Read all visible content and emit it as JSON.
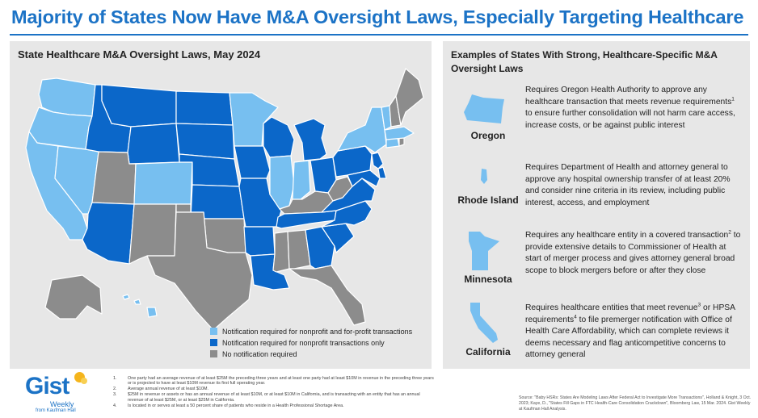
{
  "title": "Majority of States Now Have M&A Oversight Laws, Especially Targeting Healthcare",
  "colors": {
    "accent": "#1c73c6",
    "notify_all": "#77bff0",
    "notify_nonprofit": "#0b67c9",
    "no_notification": "#8c8c8c",
    "panel": "#e7e7e7"
  },
  "map": {
    "title": "State Healthcare M&A Oversight Laws, May 2024",
    "legend": [
      {
        "label": "Notification required for nonprofit and for-profit transactions",
        "color": "#77bff0"
      },
      {
        "label": "Notification required for nonprofit transactions only",
        "color": "#0b67c9"
      },
      {
        "label": "No notification required",
        "color": "#8c8c8c"
      }
    ],
    "states": {
      "notify_all": [
        "WA",
        "OR",
        "CA",
        "NV",
        "CO",
        "MN",
        "IL",
        "IN",
        "NY",
        "VT",
        "MA",
        "CT",
        "HI"
      ],
      "notify_nonprofit": [
        "MT",
        "ID",
        "WY",
        "ND",
        "SD",
        "NE",
        "KS",
        "IA",
        "MO",
        "WI",
        "MI",
        "OH",
        "PA",
        "VA",
        "NC",
        "SC",
        "GA",
        "TN",
        "AR",
        "LA",
        "AZ",
        "MD",
        "DE",
        "NJ"
      ],
      "no_notification": [
        "UT",
        "NM",
        "OK",
        "TX",
        "KY",
        "WV",
        "MS",
        "AL",
        "FL",
        "ME",
        "NH",
        "AK"
      ]
    }
  },
  "examples": {
    "title": "Examples of States With Strong, Healthcare-Specific M&A Oversight Laws",
    "items": [
      {
        "state": "Oregon",
        "icon": "oregon-state-icon",
        "desc": "Requires Oregon Health Authority to approve any healthcare transaction that meets revenue requirements",
        "sup": "1",
        "desc2": " to ensure further consolidation will not harm care access, increase costs, or be against public interest"
      },
      {
        "state": "Rhode Island",
        "icon": "rhode-island-state-icon",
        "desc": "Requires Department of Health and attorney general to approve any hospital ownership transfer of at least 20% and consider nine criteria in its review, including public interest, access, and employment",
        "sup": "",
        "desc2": ""
      },
      {
        "state": "Minnesota",
        "icon": "minnesota-state-icon",
        "desc": "Requires any healthcare entity in a covered transaction",
        "sup": "2",
        "desc2": " to provide extensive details to Commissioner of Health at start of merger process and gives attorney general broad scope to block mergers before or after they close"
      },
      {
        "state": "California",
        "icon": "california-state-icon",
        "desc": "Requires healthcare entities that meet revenue",
        "sup": "3",
        "desc2": " or HPSA requirements",
        "sup2": "4",
        "desc3": " to file premerger notification with Office of Health Care Affordability, which can complete reviews it deems necessary and flag anticompetitive concerns to attorney general"
      }
    ]
  },
  "logo": {
    "name": "Gist",
    "sub": "Weekly",
    "from": "from Kaufman Hall"
  },
  "footnotes": [
    {
      "num": "1.",
      "text": "One party had an average revenue of at least $25M the preceding three years and at least one party had at least $10M in revenue in the preceding three years or is projected to have at least $10M revenue its first full operating year."
    },
    {
      "num": "2.",
      "text": "Average annual revenue of at least $10M."
    },
    {
      "num": "3.",
      "text": "$25M in revenue or assets or has an annual revenue of at least $10M, or at least $10M in California, and is transacting with an entity that has an annual revenue of at least $25M, or at least $25M in California."
    },
    {
      "num": "4.",
      "text": "Is located in or serves at least a 50 percent share of patients who reside in a Health Professional Shortage Area."
    }
  ],
  "source": "Source: \"Baby HSRs: States Are Modeling Laws After Federal Act to Investigate More Transactions\", Holland & Knight, 3 Oct. 2023; Kaye, D., \"States Fill Gaps in FTC Health-Care Consolidation Crackdown\", Bloomberg Law, 15 Mar. 2024. Gist Weekly at Kaufman Hall Analysis."
}
